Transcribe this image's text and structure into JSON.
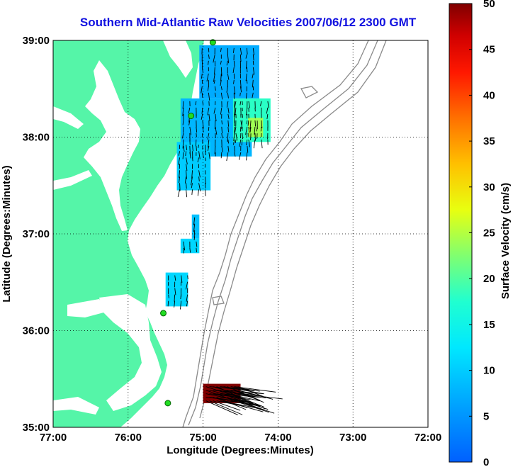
{
  "title": "Southern Mid-Atlantic Raw Velocities 2007/06/12 2300 GMT",
  "xlabel": "Longitude (Degrees:Minutes)",
  "ylabel": "Latitude (Degrees:Minutes)",
  "colorbar_label": "Surface Velocity (cm/s)",
  "colors": {
    "land": "#55f5a8",
    "ocean": "#ffffff",
    "title": "#1010e0",
    "bathymetry": "#8a8a8a",
    "station": "#22dd22"
  },
  "x_ticks": [
    "77:00",
    "76:00",
    "75:00",
    "74:00",
    "73:00",
    "72:00"
  ],
  "y_ticks": [
    "39:00",
    "38:00",
    "37:00",
    "36:00",
    "35:00"
  ],
  "colorbar_ticks": [
    "50",
    "45",
    "40",
    "35",
    "30",
    "25",
    "20",
    "15",
    "10",
    "5",
    "0"
  ],
  "chart_data": {
    "type": "heatmap",
    "title": "Southern Mid-Atlantic Raw Velocities 2007/06/12 2300 GMT",
    "xlabel": "Longitude (Degrees:Minutes)",
    "ylabel": "Latitude (Degrees:Minutes)",
    "xlim": [
      -77,
      -72
    ],
    "ylim": [
      35,
      39
    ],
    "clim": [
      0,
      50
    ],
    "colormap": "jet",
    "grid": true,
    "stations": [
      {
        "lon": -74.87,
        "lat": 38.98
      },
      {
        "lon": -75.16,
        "lat": 38.22
      },
      {
        "lon": -75.53,
        "lat": 36.18
      },
      {
        "lon": -75.47,
        "lat": 35.25
      }
    ],
    "velocity_regions": [
      {
        "lon_min": -75.05,
        "lon_max": -74.25,
        "lat_min": 38.4,
        "lat_max": 38.95,
        "speed": 7
      },
      {
        "lon_min": -75.3,
        "lon_max": -74.35,
        "lat_min": 37.8,
        "lat_max": 38.4,
        "speed": 8
      },
      {
        "lon_min": -74.6,
        "lon_max": -74.1,
        "lat_min": 37.95,
        "lat_max": 38.4,
        "speed": 18
      },
      {
        "lon_min": -74.4,
        "lon_max": -74.2,
        "lat_min": 38.0,
        "lat_max": 38.2,
        "speed": 24
      },
      {
        "lon_min": -75.35,
        "lon_max": -74.9,
        "lat_min": 37.45,
        "lat_max": 37.95,
        "speed": 10
      },
      {
        "lon_min": -75.15,
        "lon_max": -75.05,
        "lat_min": 36.95,
        "lat_max": 37.2,
        "speed": 9
      },
      {
        "lon_min": -75.3,
        "lon_max": -75.05,
        "lat_min": 36.8,
        "lat_max": 36.95,
        "speed": 11
      },
      {
        "lon_min": -75.5,
        "lon_max": -75.2,
        "lat_min": 36.25,
        "lat_max": 36.6,
        "speed": 11
      },
      {
        "lon_min": -75.0,
        "lon_max": -74.5,
        "lat_min": 35.25,
        "lat_max": 35.45,
        "speed": 50
      }
    ]
  }
}
